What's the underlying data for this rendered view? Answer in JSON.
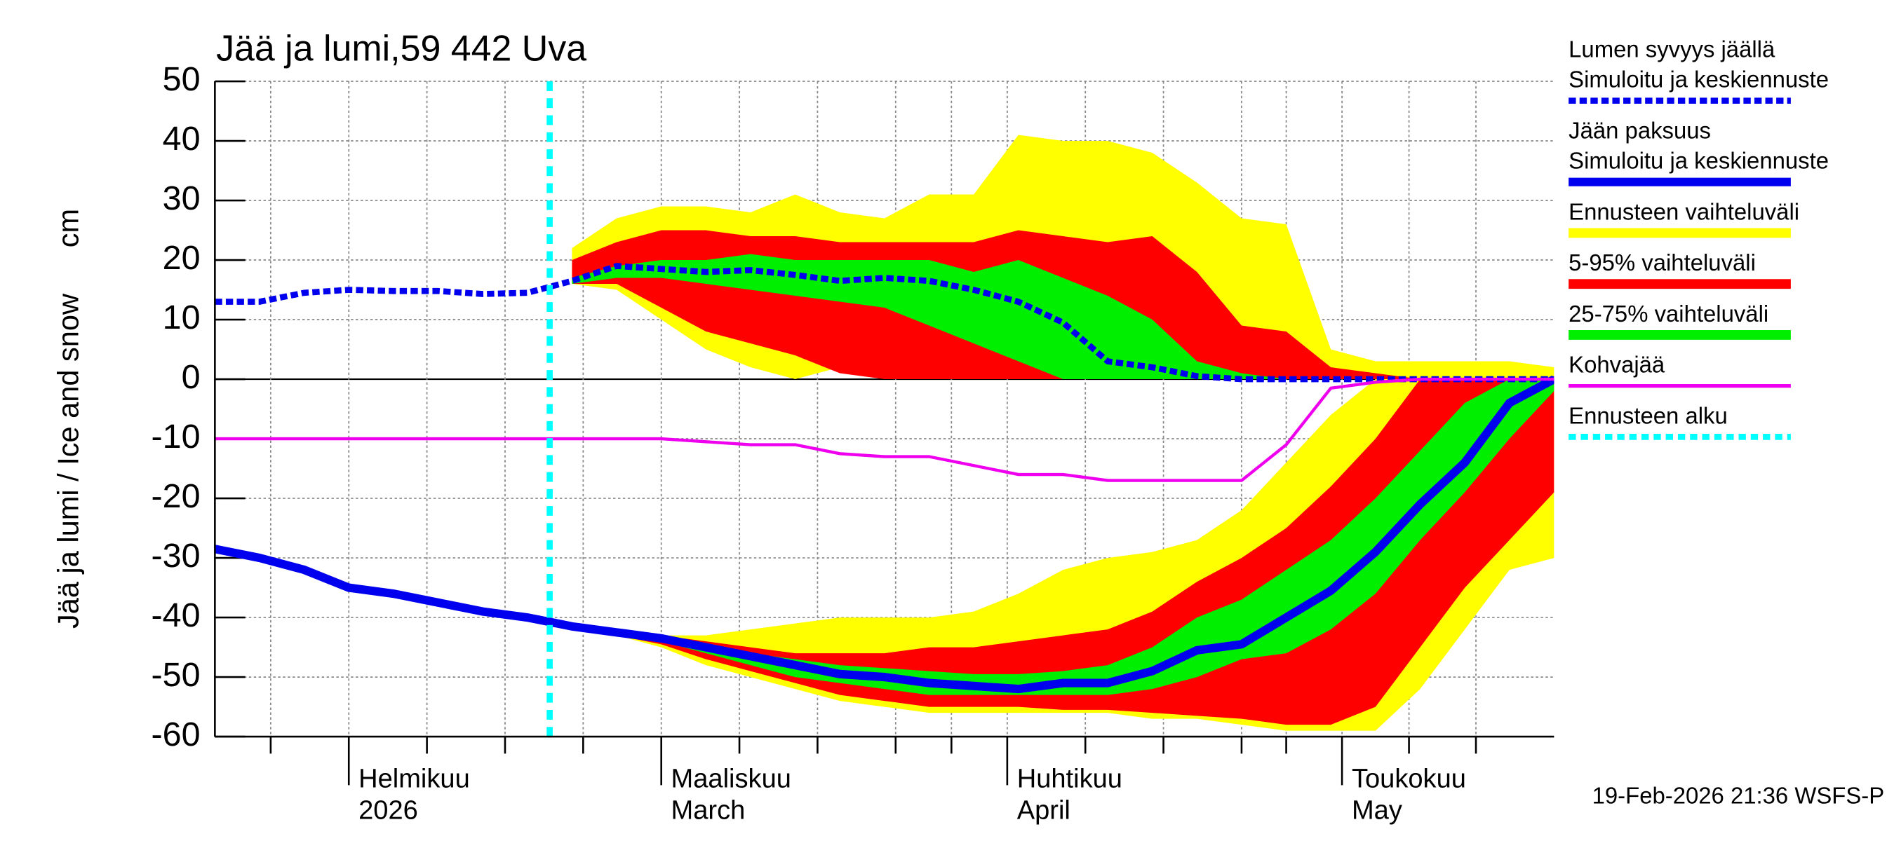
{
  "chart_data": {
    "type": "line",
    "title": "Jää ja lumi,59 442 Uva",
    "ylabel": "Jää ja lumi / Ice and snow",
    "yunit": "cm",
    "footer": "19-Feb-2026 21:36 WSFS-P",
    "x": [
      0,
      4,
      8,
      12,
      16,
      20,
      24,
      28,
      32,
      36,
      40,
      44,
      48,
      52,
      56,
      60,
      64,
      68,
      72,
      76,
      80,
      84,
      88,
      92,
      96,
      100,
      104,
      108,
      112,
      116,
      120
    ],
    "xlim": [
      0,
      120
    ],
    "xticks": [
      {
        "value": 12,
        "label": "Helmikuu"
      },
      {
        "value": 40,
        "label": "Maaliskuu"
      },
      {
        "value": 71,
        "label": "Huhtikuu"
      },
      {
        "value": 101,
        "label": "Toukokuu"
      }
    ],
    "xticks_line2": [
      "2026",
      "March",
      "April",
      "May"
    ],
    "xminor": [
      5,
      19,
      26,
      33,
      47,
      54,
      61,
      66,
      78,
      85,
      92,
      96,
      107,
      113
    ],
    "ylim": [
      -60,
      50
    ],
    "yticks": [
      -60,
      -50,
      -40,
      -30,
      -20,
      -10,
      0,
      10,
      20,
      30,
      40,
      50
    ],
    "grid": true,
    "bands": [
      {
        "name": "Ennusteen vaihteluväli",
        "color": "#ffff00",
        "snow_high": [
          null,
          null,
          null,
          null,
          null,
          null,
          null,
          null,
          22,
          27,
          29,
          29,
          28,
          31,
          28,
          27,
          31,
          31,
          41,
          40,
          40,
          38,
          33,
          27,
          26,
          5,
          3,
          3,
          3,
          3,
          2
        ],
        "snow_low": [
          null,
          null,
          null,
          null,
          null,
          null,
          null,
          null,
          16,
          15,
          10,
          5,
          2,
          0,
          2,
          0,
          0,
          0,
          0,
          0,
          0,
          0,
          0,
          0,
          0,
          0,
          0,
          0,
          0,
          0,
          0
        ],
        "ice_high": [
          null,
          null,
          null,
          null,
          null,
          null,
          null,
          null,
          -41.5,
          -42.5,
          -43,
          -43,
          -42,
          -41,
          -40,
          -40,
          -40,
          -39,
          -36,
          -32,
          -30,
          -29,
          -27,
          -22,
          -14,
          -6,
          0,
          0,
          0,
          0,
          0
        ],
        "ice_low": [
          null,
          null,
          null,
          null,
          null,
          null,
          null,
          null,
          -41.5,
          -43,
          -45,
          -48,
          -50,
          -52,
          -54,
          -55,
          -56,
          -56,
          -56,
          -56,
          -56,
          -57,
          -57,
          -58,
          -59,
          -59,
          -59,
          -52,
          -42,
          -32,
          -30
        ]
      },
      {
        "name": "5-95% vaihteluväli",
        "color": "#ff0000",
        "snow_high": [
          null,
          null,
          null,
          null,
          null,
          null,
          null,
          null,
          20,
          23,
          25,
          25,
          24,
          24,
          23,
          23,
          23,
          23,
          25,
          24,
          23,
          24,
          18,
          9,
          8,
          2,
          1,
          0,
          0,
          0,
          0
        ],
        "snow_low": [
          null,
          null,
          null,
          null,
          null,
          null,
          null,
          null,
          16,
          16,
          12,
          8,
          6,
          4,
          1,
          0,
          0,
          0,
          0,
          0,
          0,
          0,
          0,
          0,
          0,
          0,
          0,
          0,
          0,
          0,
          0
        ],
        "ice_high": [
          null,
          null,
          null,
          null,
          null,
          null,
          null,
          null,
          -41.5,
          -42.5,
          -43,
          -44,
          -45,
          -46,
          -46,
          -46,
          -45,
          -45,
          -44,
          -43,
          -42,
          -39,
          -34,
          -30,
          -25,
          -18,
          -10,
          0,
          0,
          0,
          0
        ],
        "ice_low": [
          null,
          null,
          null,
          null,
          null,
          null,
          null,
          null,
          -41.5,
          -43,
          -44.5,
          -47,
          -49,
          -51,
          -53,
          -54,
          -55,
          -55,
          -55,
          -55.5,
          -55.5,
          -56,
          -56.5,
          -57,
          -58,
          -58,
          -55,
          -45,
          -35,
          -27,
          -19
        ]
      },
      {
        "name": "25-75% vaihteluväli",
        "color": "#00ee00",
        "snow_high": [
          null,
          null,
          null,
          null,
          null,
          null,
          null,
          null,
          17,
          19,
          20,
          20,
          21,
          20,
          20,
          20,
          20,
          18,
          20,
          17,
          14,
          10,
          3,
          1,
          0,
          0,
          0,
          0,
          0,
          0,
          0
        ],
        "snow_low": [
          null,
          null,
          null,
          null,
          null,
          null,
          null,
          null,
          16,
          17,
          17,
          16,
          15,
          14,
          13,
          12,
          9,
          6,
          3,
          0,
          0,
          0,
          0,
          0,
          0,
          0,
          0,
          0,
          0,
          0,
          0
        ],
        "ice_high": [
          null,
          null,
          null,
          null,
          null,
          null,
          null,
          null,
          -41.5,
          -42.5,
          -43.5,
          -44.5,
          -46,
          -47,
          -48,
          -48.5,
          -49,
          -49.5,
          -49.5,
          -49,
          -48,
          -45,
          -40,
          -37,
          -32,
          -27,
          -20,
          -12,
          -4,
          0,
          0
        ],
        "ice_low": [
          null,
          null,
          null,
          null,
          null,
          null,
          null,
          null,
          -41.5,
          -43,
          -44,
          -46,
          -48,
          -50,
          -51,
          -52,
          -53,
          -53,
          -53,
          -53,
          -53,
          -52,
          -50,
          -47,
          -46,
          -42,
          -36,
          -27,
          -19,
          -10,
          -2
        ]
      }
    ],
    "series": [
      {
        "name": "Lumen syvyys jäällä",
        "sublabel": "Simuloitu ja keskiennuste",
        "color": "#0000ee",
        "style": "dashed",
        "values": [
          13,
          13,
          14.5,
          15,
          14.8,
          14.8,
          14.3,
          14.5,
          16.5,
          19,
          18.5,
          18,
          18.3,
          17.5,
          16.5,
          17,
          16.5,
          15,
          13,
          9.5,
          3,
          2,
          0.5,
          0,
          0,
          0,
          0,
          0,
          0,
          0,
          0
        ]
      },
      {
        "name": "Jään paksuus",
        "sublabel": "Simuloitu ja keskiennuste",
        "color": "#0000ee",
        "style": "solid",
        "values": [
          -28.5,
          -30,
          -32,
          -35,
          -36,
          -37.5,
          -39,
          -40,
          -41.5,
          -42.5,
          -43.5,
          -45,
          -46.5,
          -48,
          -49.5,
          -50,
          -51,
          -51.5,
          -52,
          -51,
          -51,
          -49,
          -45.5,
          -44.5,
          -40,
          -35.5,
          -29,
          -21,
          -14,
          -4,
          0
        ]
      },
      {
        "name": "Kohvajää",
        "color": "#ee00ee",
        "style": "thin",
        "values": [
          -10,
          -10,
          -10,
          -10,
          -10,
          -10,
          -10,
          -10,
          -10,
          -10,
          -10,
          -10.5,
          -11,
          -11,
          -12.5,
          -13,
          -13,
          -14.5,
          -16,
          -16,
          -17,
          -17,
          -17,
          -17,
          -11,
          -1.5,
          -0.5,
          0,
          0,
          0,
          0
        ]
      }
    ],
    "forecast_start": {
      "name": "Ennusteen alku",
      "x": 30,
      "color": "#00ffff"
    }
  }
}
